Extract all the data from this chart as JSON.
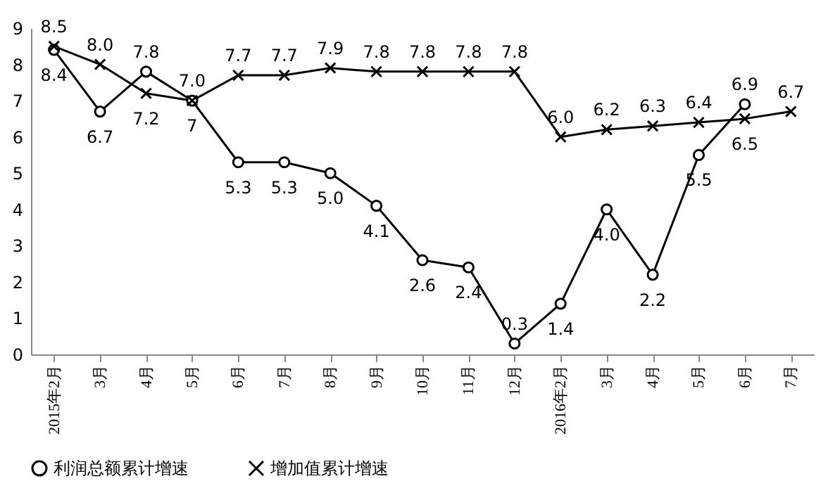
{
  "chart_data": {
    "type": "line",
    "categories": [
      "2015年2月",
      "3月",
      "4月",
      "5月",
      "6月",
      "7月",
      "8月",
      "9月",
      "10月",
      "11月",
      "12月",
      "2016年2月",
      "3月",
      "4月",
      "5月",
      "6月",
      "7月"
    ],
    "series": [
      {
        "name": "利润总额累计增速",
        "color": "#000000",
        "marker": "circle",
        "values": [
          8.4,
          6.7,
          7.8,
          7,
          5.3,
          5.3,
          5.0,
          4.1,
          2.6,
          2.4,
          0.3,
          1.4,
          4.0,
          2.2,
          5.5,
          6.9,
          null
        ],
        "value_labels": [
          "8.4",
          "6.7",
          "7.8",
          "7",
          "5.3",
          "5.3",
          "5.0",
          "4.1",
          "2.6",
          "2.4",
          "0.3",
          "1.4",
          "4.0",
          "2.2",
          "5.5",
          "6.9",
          null
        ]
      },
      {
        "name": "增加值累计增速",
        "color": "#000000",
        "marker": "cross",
        "values": [
          8.5,
          8.0,
          7.2,
          7.0,
          7.7,
          7.7,
          7.9,
          7.8,
          7.8,
          7.8,
          7.8,
          6.0,
          6.2,
          6.3,
          6.4,
          6.5,
          6.7
        ],
        "value_labels": [
          "8.5",
          "8.0",
          "7.2",
          "7.0",
          "7.7",
          "7.7",
          "7.9",
          "7.8",
          "7.8",
          "7.8",
          "7.8",
          "6.0",
          "6.2",
          "6.3",
          "6.4",
          "6.5",
          "6.7"
        ]
      }
    ],
    "ylim": [
      0,
      9
    ],
    "yticks": [
      0,
      1,
      2,
      3,
      4,
      5,
      6,
      7,
      8,
      9
    ],
    "grid": false,
    "legend": "bottom",
    "line_style": "solid"
  }
}
